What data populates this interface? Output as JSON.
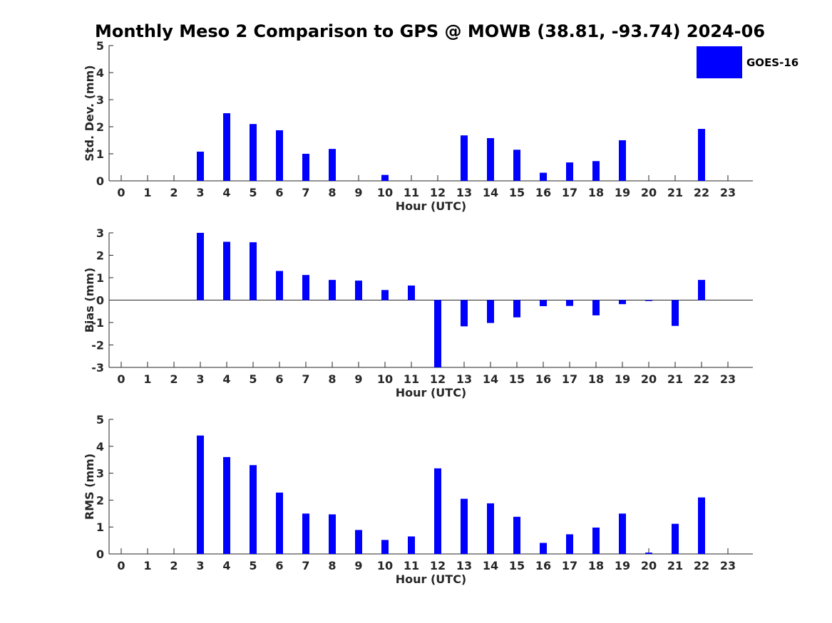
{
  "title": "Monthly Meso 2 Comparison to GPS @ MOWB (38.81, -93.74) 2024-06",
  "legend": {
    "label": "GOES-16",
    "color": "#0000ff",
    "position": "top-right"
  },
  "chart_data": [
    {
      "type": "bar",
      "ylabel": "Std. Dev. (mm)",
      "xlabel": "Hour (UTC)",
      "ylim": [
        0,
        5
      ],
      "yticks": [
        "0",
        "1",
        "2",
        "3",
        "4",
        "5"
      ],
      "categories": [
        "0",
        "1",
        "2",
        "3",
        "4",
        "5",
        "6",
        "7",
        "8",
        "9",
        "10",
        "11",
        "12",
        "13",
        "14",
        "15",
        "16",
        "17",
        "18",
        "19",
        "20",
        "21",
        "22",
        "23"
      ],
      "series": [
        {
          "name": "GOES-16",
          "values": [
            null,
            null,
            null,
            1.08,
            2.5,
            2.1,
            1.87,
            1.0,
            1.18,
            null,
            0.22,
            null,
            null,
            1.68,
            1.58,
            1.15,
            0.3,
            0.68,
            0.73,
            1.5,
            null,
            null,
            1.92,
            null
          ]
        }
      ]
    },
    {
      "type": "bar",
      "ylabel": "Bias (mm)",
      "xlabel": "Hour (UTC)",
      "ylim": [
        -3,
        3
      ],
      "yticks": [
        "-3",
        "-2",
        "-1",
        "0",
        "1",
        "2",
        "3"
      ],
      "categories": [
        "0",
        "1",
        "2",
        "3",
        "4",
        "5",
        "6",
        "7",
        "8",
        "9",
        "10",
        "11",
        "12",
        "13",
        "14",
        "15",
        "16",
        "17",
        "18",
        "19",
        "20",
        "21",
        "22",
        "23"
      ],
      "series": [
        {
          "name": "GOES-16",
          "values": [
            null,
            null,
            null,
            3.0,
            2.6,
            2.58,
            1.3,
            1.12,
            0.9,
            0.87,
            0.45,
            0.65,
            -3.0,
            -1.17,
            -1.02,
            -0.77,
            -0.27,
            -0.26,
            -0.68,
            -0.18,
            -0.04,
            -1.15,
            0.9,
            null
          ]
        }
      ]
    },
    {
      "type": "bar",
      "ylabel": "RMS (mm)",
      "xlabel": "Hour (UTC)",
      "ylim": [
        0,
        5
      ],
      "yticks": [
        "0",
        "1",
        "2",
        "3",
        "4",
        "5"
      ],
      "categories": [
        "0",
        "1",
        "2",
        "3",
        "4",
        "5",
        "6",
        "7",
        "8",
        "9",
        "10",
        "11",
        "12",
        "13",
        "14",
        "15",
        "16",
        "17",
        "18",
        "19",
        "20",
        "21",
        "22",
        "23"
      ],
      "series": [
        {
          "name": "GOES-16",
          "values": [
            null,
            null,
            null,
            4.4,
            3.6,
            3.3,
            2.28,
            1.5,
            1.47,
            0.89,
            0.52,
            0.65,
            3.18,
            2.05,
            1.88,
            1.38,
            0.41,
            0.73,
            0.98,
            1.5,
            0.05,
            1.12,
            2.1,
            null
          ]
        }
      ]
    }
  ]
}
